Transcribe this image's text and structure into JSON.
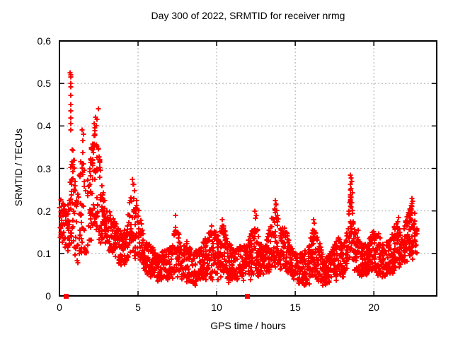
{
  "window": {
    "background": "#ffffff"
  },
  "chart_data": {
    "type": "scatter",
    "title": "Day 300 of 2022, SRMTID for receiver nrmg",
    "xlabel": "GPS time / hours",
    "ylabel": "SRMTID / TECUs",
    "xlim": [
      0,
      24
    ],
    "ylim": [
      0,
      0.6
    ],
    "xticks": [
      0,
      5,
      10,
      15,
      20
    ],
    "xtick_labels": [
      "0",
      "5",
      "10",
      "15",
      "20"
    ],
    "yticks": [
      0,
      0.1,
      0.2,
      0.3,
      0.4,
      0.5,
      0.6
    ],
    "ytick_labels": [
      "0",
      "0.1",
      "0.2",
      "0.3",
      "0.4",
      "0.5",
      "0.6"
    ],
    "grid": true,
    "legend": "none",
    "colors": {
      "marker": "#ff0000",
      "grid": "#a8a8a8",
      "axis": "#000000",
      "background": "#ffffff"
    },
    "marker": "plus",
    "series": [
      {
        "name": "srmtid-scatter",
        "marker": "plus",
        "generator": {
          "seed": 1234,
          "t_start": 0.03,
          "t_end": 22.75,
          "epoch_step": 0.05,
          "envelope": [
            [
              0.02,
              0.14,
              0.23,
              5
            ],
            [
              0.3,
              0.13,
              0.22,
              5
            ],
            [
              0.5,
              0.11,
              0.21,
              4
            ],
            [
              0.65,
              0.12,
              0.25,
              4
            ],
            [
              0.8,
              0.15,
              0.38,
              6
            ],
            [
              0.95,
              0.12,
              0.31,
              5
            ],
            [
              1.1,
              0.09,
              0.22,
              4
            ],
            [
              1.3,
              0.1,
              0.3,
              5
            ],
            [
              1.5,
              0.12,
              0.36,
              5
            ],
            [
              1.7,
              0.1,
              0.24,
              4
            ],
            [
              1.9,
              0.13,
              0.3,
              5
            ],
            [
              2.1,
              0.16,
              0.38,
              6
            ],
            [
              2.3,
              0.18,
              0.41,
              6
            ],
            [
              2.5,
              0.15,
              0.36,
              5
            ],
            [
              2.7,
              0.13,
              0.26,
              5
            ],
            [
              3.0,
              0.12,
              0.21,
              5
            ],
            [
              3.3,
              0.1,
              0.19,
              5
            ],
            [
              3.6,
              0.08,
              0.17,
              5
            ],
            [
              4.0,
              0.07,
              0.15,
              5
            ],
            [
              4.3,
              0.08,
              0.16,
              5
            ],
            [
              4.55,
              0.1,
              0.26,
              5
            ],
            [
              4.75,
              0.1,
              0.27,
              5
            ],
            [
              4.95,
              0.09,
              0.21,
              5
            ],
            [
              5.15,
              0.09,
              0.2,
              5
            ],
            [
              5.4,
              0.06,
              0.13,
              5
            ],
            [
              5.8,
              0.05,
              0.12,
              5
            ],
            [
              6.3,
              0.04,
              0.1,
              5
            ],
            [
              6.8,
              0.04,
              0.11,
              5
            ],
            [
              7.2,
              0.05,
              0.13,
              5
            ],
            [
              7.45,
              0.06,
              0.18,
              5
            ],
            [
              7.7,
              0.04,
              0.12,
              5
            ],
            [
              8.1,
              0.04,
              0.13,
              5
            ],
            [
              8.5,
              0.03,
              0.1,
              5
            ],
            [
              9.0,
              0.04,
              0.12,
              5
            ],
            [
              9.5,
              0.05,
              0.15,
              5
            ],
            [
              9.8,
              0.05,
              0.16,
              5
            ],
            [
              10.1,
              0.05,
              0.15,
              5
            ],
            [
              10.4,
              0.06,
              0.17,
              5
            ],
            [
              10.7,
              0.04,
              0.13,
              5
            ],
            [
              11.1,
              0.04,
              0.11,
              5
            ],
            [
              11.5,
              0.04,
              0.12,
              5
            ],
            [
              11.9,
              0.04,
              0.12,
              5
            ],
            [
              12.2,
              0.05,
              0.15,
              5
            ],
            [
              12.45,
              0.06,
              0.19,
              5
            ],
            [
              12.7,
              0.05,
              0.13,
              5
            ],
            [
              13.0,
              0.05,
              0.12,
              5
            ],
            [
              13.3,
              0.06,
              0.15,
              5
            ],
            [
              13.6,
              0.08,
              0.2,
              6
            ],
            [
              13.8,
              0.08,
              0.22,
              6
            ],
            [
              14.0,
              0.07,
              0.16,
              5
            ],
            [
              14.35,
              0.07,
              0.17,
              5
            ],
            [
              14.7,
              0.05,
              0.12,
              5
            ],
            [
              15.1,
              0.04,
              0.1,
              5
            ],
            [
              15.5,
              0.03,
              0.1,
              5
            ],
            [
              15.9,
              0.04,
              0.13,
              5
            ],
            [
              16.2,
              0.05,
              0.17,
              5
            ],
            [
              16.55,
              0.03,
              0.13,
              5
            ],
            [
              16.85,
              0.02,
              0.08,
              5
            ],
            [
              17.15,
              0.03,
              0.1,
              5
            ],
            [
              17.45,
              0.04,
              0.12,
              5
            ],
            [
              17.75,
              0.05,
              0.14,
              5
            ],
            [
              18.05,
              0.05,
              0.12,
              5
            ],
            [
              18.35,
              0.07,
              0.16,
              5
            ],
            [
              18.55,
              0.1,
              0.26,
              6
            ],
            [
              18.75,
              0.06,
              0.16,
              5
            ],
            [
              19.1,
              0.05,
              0.13,
              5
            ],
            [
              19.5,
              0.05,
              0.12,
              5
            ],
            [
              19.9,
              0.06,
              0.15,
              5
            ],
            [
              20.2,
              0.06,
              0.16,
              5
            ],
            [
              20.6,
              0.04,
              0.12,
              5
            ],
            [
              21.0,
              0.05,
              0.13,
              5
            ],
            [
              21.5,
              0.08,
              0.18,
              5
            ],
            [
              21.8,
              0.07,
              0.14,
              5
            ],
            [
              22.1,
              0.09,
              0.19,
              5
            ],
            [
              22.45,
              0.1,
              0.23,
              6
            ],
            [
              22.72,
              0.1,
              0.16,
              4
            ]
          ]
        },
        "notable_points": [
          [
            0.68,
            0.525
          ],
          [
            0.72,
            0.52
          ],
          [
            0.7,
            0.515
          ],
          [
            0.71,
            0.5
          ],
          [
            0.73,
            0.492
          ],
          [
            0.7,
            0.472
          ],
          [
            0.72,
            0.45
          ],
          [
            0.71,
            0.436
          ],
          [
            0.73,
            0.419
          ],
          [
            0.7,
            0.405
          ],
          [
            0.74,
            0.39
          ],
          [
            1.45,
            0.39
          ],
          [
            1.52,
            0.38
          ],
          [
            1.48,
            0.365
          ],
          [
            2.48,
            0.44
          ],
          [
            2.3,
            0.42
          ],
          [
            2.38,
            0.415
          ],
          [
            2.2,
            0.405
          ],
          [
            4.62,
            0.275
          ],
          [
            4.67,
            0.262
          ],
          [
            7.4,
            0.19
          ],
          [
            9.7,
            0.165
          ],
          [
            10.35,
            0.18
          ],
          [
            12.42,
            0.2
          ],
          [
            12.5,
            0.19
          ],
          [
            13.75,
            0.225
          ],
          [
            13.8,
            0.215
          ],
          [
            13.7,
            0.205
          ],
          [
            16.15,
            0.18
          ],
          [
            16.2,
            0.172
          ],
          [
            18.5,
            0.284
          ],
          [
            18.55,
            0.278
          ],
          [
            18.6,
            0.27
          ],
          [
            18.52,
            0.262
          ],
          [
            18.57,
            0.252
          ],
          [
            18.62,
            0.243
          ],
          [
            18.55,
            0.232
          ],
          [
            18.5,
            0.222
          ],
          [
            19.0,
            0.155
          ],
          [
            21.55,
            0.185
          ],
          [
            22.42,
            0.23
          ],
          [
            22.47,
            0.222
          ],
          [
            22.38,
            0.212
          ]
        ]
      },
      {
        "name": "zero-flag-squares",
        "marker": "filled-square",
        "points": [
          [
            0.41,
            0
          ],
          [
            11.95,
            0
          ]
        ]
      }
    ]
  }
}
